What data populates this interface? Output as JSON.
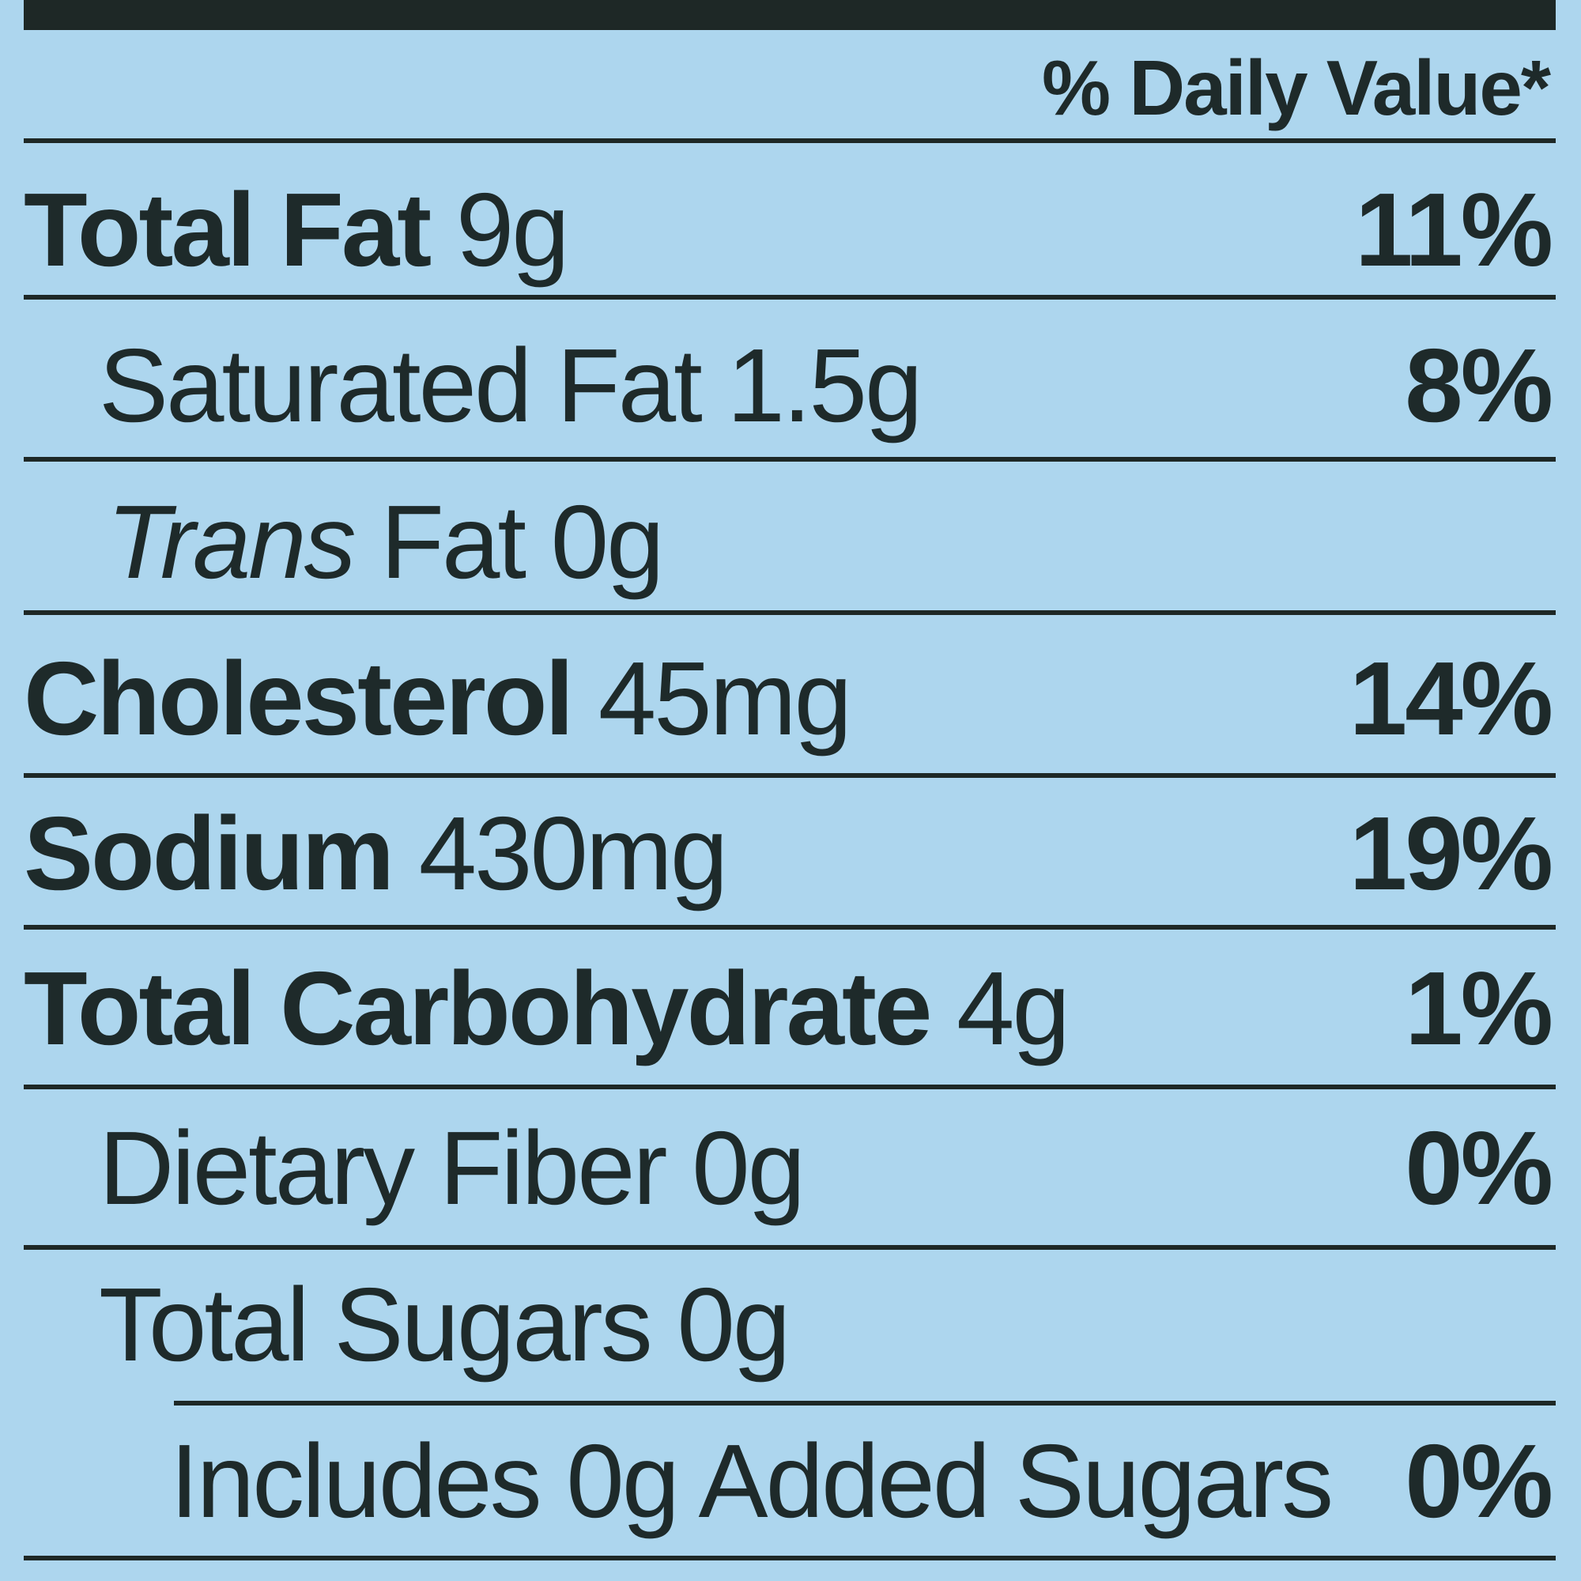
{
  "header": {
    "daily_value_heading": "% Daily Value*"
  },
  "rows": [
    {
      "name": "Total Fat",
      "amount": "9g",
      "dv": "11%"
    },
    {
      "name": "Saturated Fat",
      "amount": "1.5g",
      "dv": "8%"
    },
    {
      "name_italic": "Trans",
      "name": "Fat",
      "amount": "0g",
      "dv": ""
    },
    {
      "name": "Cholesterol",
      "amount": "45mg",
      "dv": "14%"
    },
    {
      "name": "Sodium",
      "amount": "430mg",
      "dv": "19%"
    },
    {
      "name": "Total Carbohydrate",
      "amount": "4g",
      "dv": "1%"
    },
    {
      "name": "Dietary Fiber",
      "amount": "0g",
      "dv": "0%"
    },
    {
      "name": "Total Sugars",
      "amount": "0g",
      "dv": ""
    },
    {
      "name": "Includes 0g Added Sugars",
      "amount": "",
      "dv": "0%"
    }
  ]
}
